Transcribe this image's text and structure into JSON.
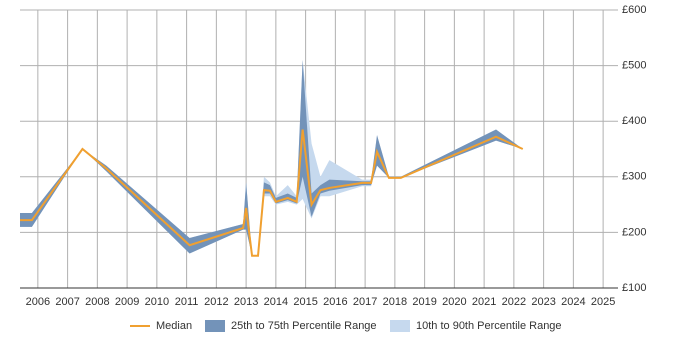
{
  "chart_data": {
    "type": "line",
    "x": [
      2005.4,
      2005.8,
      2007.5,
      2008.3,
      2011.1,
      2012.9,
      2013.0,
      2013.2,
      2013.4,
      2013.6,
      2013.8,
      2014.0,
      2014.4,
      2014.7,
      2014.9,
      2015.2,
      2015.5,
      2015.8,
      2016.9,
      2017.2,
      2017.4,
      2017.8,
      2018.2,
      2021.4,
      2022.3
    ],
    "series": [
      {
        "name": "Median",
        "color": "#f0a030",
        "values": [
          222,
          222,
          350,
          315,
          177,
          208,
          244,
          158,
          158,
          276,
          275,
          255,
          262,
          255,
          385,
          250,
          276,
          280,
          289,
          289,
          345,
          298,
          298,
          372,
          350
        ]
      },
      {
        "name": "25th to 75th Percentile Range",
        "color": "#7393b9",
        "low": [
          210,
          210,
          350,
          310,
          162,
          205,
          205,
          158,
          158,
          270,
          270,
          252,
          258,
          252,
          300,
          228,
          270,
          275,
          285,
          285,
          320,
          298,
          298,
          365,
          350
        ],
        "high": [
          235,
          235,
          350,
          320,
          190,
          215,
          290,
          158,
          158,
          290,
          285,
          262,
          270,
          262,
          510,
          270,
          285,
          295,
          292,
          292,
          375,
          300,
          300,
          385,
          350
        ]
      },
      {
        "name": "10th to 90th Percentile Range",
        "color": "#c6d9ee",
        "low": [
          210,
          210,
          350,
          310,
          162,
          205,
          205,
          158,
          158,
          265,
          265,
          250,
          255,
          250,
          260,
          225,
          265,
          265,
          283,
          283,
          320,
          298,
          298,
          365,
          350
        ],
        "high": [
          235,
          235,
          350,
          320,
          190,
          215,
          290,
          158,
          158,
          300,
          290,
          265,
          285,
          265,
          510,
          360,
          300,
          330,
          295,
          295,
          375,
          300,
          300,
          385,
          350
        ]
      }
    ],
    "xlim": [
      2005.4,
      2025.5
    ],
    "xticks": [
      2006,
      2007,
      2008,
      2009,
      2010,
      2011,
      2012,
      2013,
      2014,
      2015,
      2016,
      2017,
      2018,
      2019,
      2020,
      2021,
      2022,
      2023,
      2024,
      2025
    ],
    "ylim": [
      100,
      600
    ],
    "yticks": [
      {
        "value": 100,
        "label": "£100"
      },
      {
        "value": 200,
        "label": "£200"
      },
      {
        "value": 300,
        "label": "£300"
      },
      {
        "value": 400,
        "label": "£400"
      },
      {
        "value": 500,
        "label": "£500"
      },
      {
        "value": 600,
        "label": "£600"
      }
    ],
    "grid": true,
    "legend": "bottom"
  }
}
